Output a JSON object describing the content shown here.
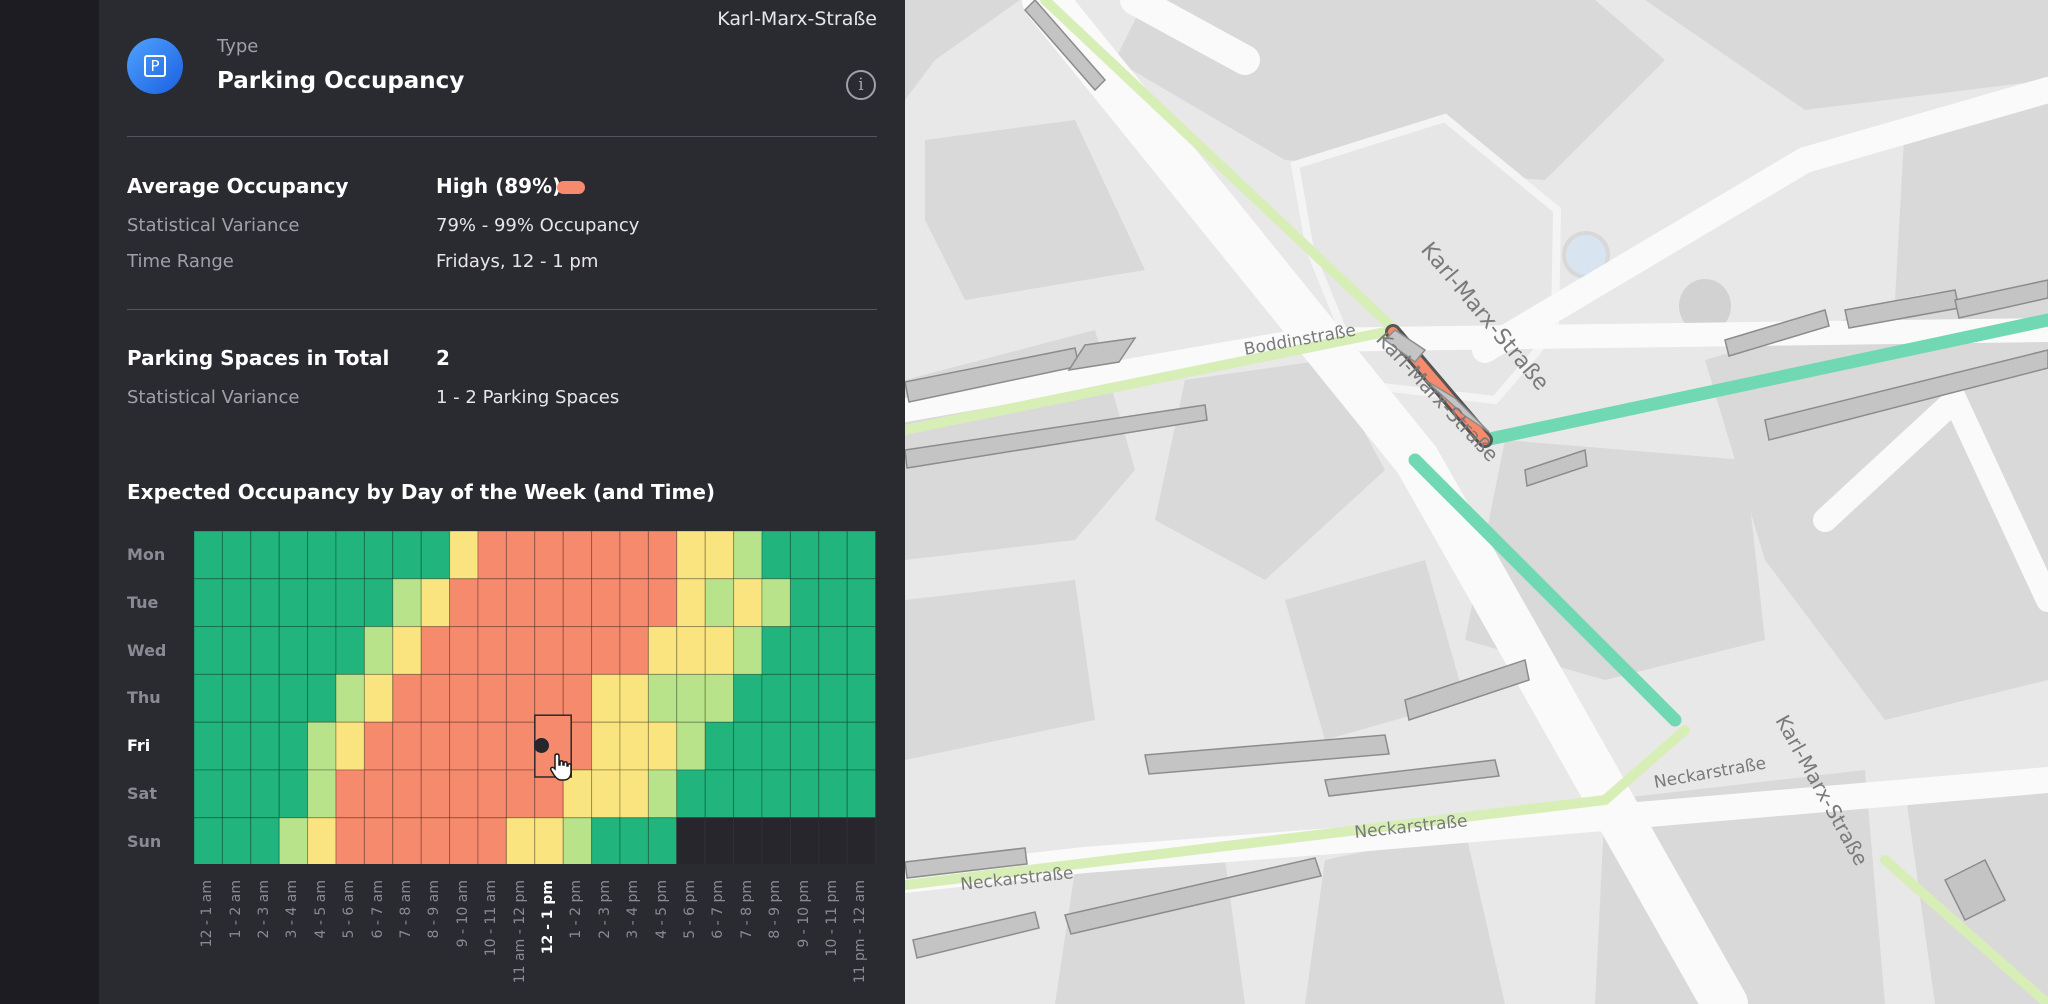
{
  "header": {
    "street": "Karl-Marx-Straße",
    "type_label": "Type",
    "type_title": "Parking Occupancy",
    "type_icon": "parking-icon",
    "info_icon": "info-icon"
  },
  "occupancy": {
    "avg_label": "Average Occupancy",
    "avg_value": "High (89%)",
    "avg_color": "#f58a6d",
    "variance_label": "Statistical Variance",
    "variance_value": "79% - 99% Occupancy",
    "time_label": "Time Range",
    "time_value": "Fridays, 12 - 1 pm"
  },
  "spaces": {
    "total_label": "Parking Spaces in Total",
    "total_value": "2",
    "variance_label": "Statistical Variance",
    "variance_value": "1 - 2 Parking Spaces"
  },
  "heatmap": {
    "title": "Expected Occupancy by Day of the Week (and Time)",
    "selected_day": "Fri",
    "selected_hour": "12 - 1 pm"
  },
  "chart_data": {
    "type": "heatmap",
    "title": "Expected Occupancy by Day of the Week (and Time)",
    "rows": [
      "Mon",
      "Tue",
      "Wed",
      "Thu",
      "Fri",
      "Sat",
      "Sun"
    ],
    "columns": [
      "12 - 1 am",
      "1 - 2 am",
      "2 - 3 am",
      "3 - 4 am",
      "4 - 5 am",
      "5 - 6 am",
      "6 - 7 am",
      "7 - 8 am",
      "8 - 9 am",
      "9 - 10 am",
      "10 - 11 am",
      "11 am - 12 pm",
      "12 - 1 pm",
      "1 - 2 pm",
      "2 - 3 pm",
      "3 - 4 pm",
      "4 - 5 pm",
      "5 - 6 pm",
      "6 - 7 pm",
      "7 - 8 pm",
      "8 - 9 pm",
      "9 - 10 pm",
      "10 - 11 pm",
      "11 pm - 12 am"
    ],
    "levels": {
      "0": "low",
      "1": "medium-low",
      "2": "medium",
      "3": "high",
      "-1": "no data"
    },
    "colors": {
      "0": "#21b57d",
      "1": "#b9e38a",
      "2": "#f9e47f",
      "3": "#f58a6d",
      "-1": "#26262c"
    },
    "values": [
      [
        0,
        0,
        0,
        0,
        0,
        0,
        0,
        0,
        0,
        2,
        3,
        3,
        3,
        3,
        3,
        3,
        3,
        2,
        2,
        1,
        0,
        0,
        0,
        0
      ],
      [
        0,
        0,
        0,
        0,
        0,
        0,
        0,
        1,
        2,
        3,
        3,
        3,
        3,
        3,
        3,
        3,
        3,
        2,
        1,
        2,
        1,
        0,
        0,
        0
      ],
      [
        0,
        0,
        0,
        0,
        0,
        0,
        1,
        2,
        3,
        3,
        3,
        3,
        3,
        3,
        3,
        3,
        2,
        2,
        2,
        1,
        0,
        0,
        0,
        0
      ],
      [
        0,
        0,
        0,
        0,
        0,
        1,
        2,
        3,
        3,
        3,
        3,
        3,
        3,
        3,
        2,
        2,
        1,
        1,
        1,
        0,
        0,
        0,
        0,
        0
      ],
      [
        0,
        0,
        0,
        0,
        1,
        2,
        3,
        3,
        3,
        3,
        3,
        3,
        3,
        3,
        2,
        2,
        2,
        1,
        0,
        0,
        0,
        0,
        0,
        0
      ],
      [
        0,
        0,
        0,
        0,
        1,
        3,
        3,
        3,
        3,
        3,
        3,
        3,
        3,
        2,
        2,
        2,
        1,
        0,
        0,
        0,
        0,
        0,
        0,
        0
      ],
      [
        0,
        0,
        0,
        1,
        2,
        3,
        3,
        3,
        3,
        3,
        3,
        2,
        2,
        1,
        0,
        0,
        0,
        -1,
        -1,
        -1,
        -1,
        -1,
        -1,
        -1
      ]
    ]
  },
  "map": {
    "streets": [
      "Karl-Marx-Straße",
      "Karl-Marx-Straße",
      "Karl-Marx-Straße",
      "Boddinstraße",
      "Neckarstraße",
      "Neckarstraße",
      "Neckarstraße"
    ]
  }
}
